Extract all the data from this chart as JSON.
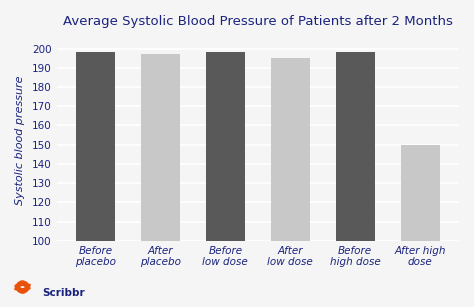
{
  "title": "Average Systolic Blood Pressure of Patients after 2 Months",
  "ylabel": "Systolic blood pressure",
  "categories": [
    "Before\nplacebo",
    "After\nplacebo",
    "Before\nlow dose",
    "After\nlow dose",
    "Before\nhigh dose",
    "After high\ndose"
  ],
  "values": [
    198,
    197,
    198,
    195,
    198,
    150
  ],
  "bar_colors": [
    "#595959",
    "#c8c8c8",
    "#595959",
    "#c8c8c8",
    "#595959",
    "#c8c8c8"
  ],
  "ylim": [
    100,
    205
  ],
  "yticks": [
    100,
    110,
    120,
    130,
    140,
    150,
    160,
    170,
    180,
    190,
    200
  ],
  "bg_color": "#f5f5f5",
  "title_color": "#1a237e",
  "ylabel_color": "#1a237e",
  "tick_label_color": "#1a237e",
  "grid_color": "#ffffff",
  "bar_width": 0.6,
  "title_fontsize": 9.5,
  "label_fontsize": 7.5,
  "ylabel_fontsize": 8,
  "scribbr_text_color": "#1a237e",
  "scribbr_icon_color": "#e8520a"
}
